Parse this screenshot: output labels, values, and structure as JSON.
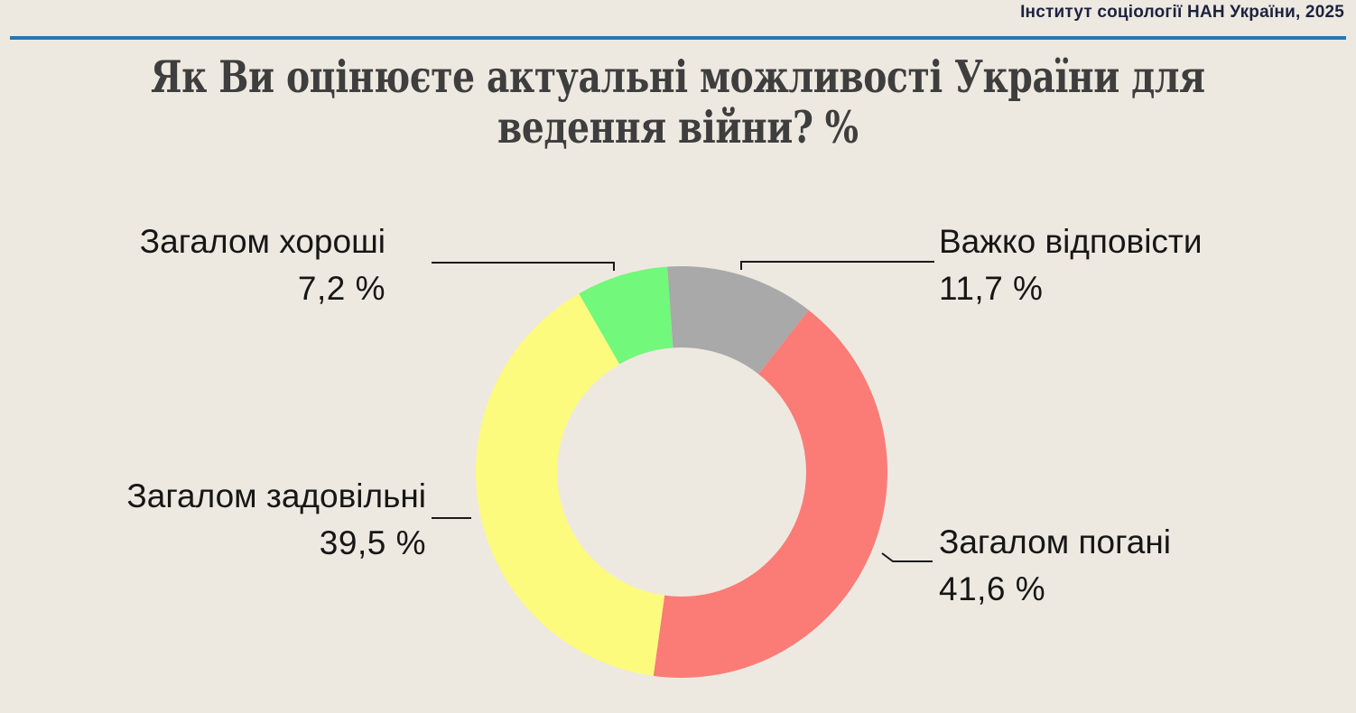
{
  "header": {
    "source": "Інститут соціології НАН України, 2025"
  },
  "title": {
    "line1": "Як Ви оцінюєте актуальні можливості України для",
    "line2": "ведення війни? %"
  },
  "colors": {
    "background": "#EDE9E0",
    "rule_blue": "#2878B2",
    "title_text": "#3E3E3E",
    "leader_line": "#1A1A1A"
  },
  "chart_data": {
    "type": "pie",
    "subtype": "donut",
    "title": "Як Ви оцінюєте актуальні можливості України для ведення війни? %",
    "categories": [
      "Важко відповісти",
      "Загалом погані",
      "Загалом задовільні",
      "Загалом хороші"
    ],
    "values": [
      11.7,
      41.6,
      39.5,
      7.2
    ],
    "value_labels": [
      "11,7 %",
      "41,6 %",
      "39,5 %",
      "7,2 %"
    ],
    "colors": [
      "#A9A9A9",
      "#FB7C77",
      "#FDFB7D",
      "#72F87B"
    ],
    "start_angle_deg": -4,
    "direction": "clockwise",
    "inner_radius_ratio": 0.605,
    "legend_position": "callout-labels",
    "units": "%"
  },
  "callouts": {
    "good": {
      "label": "Загалом хороші",
      "value": "7,2 %"
    },
    "hard": {
      "label": "Важко відповісти",
      "value": "11,7 %"
    },
    "satisfactory": {
      "label": "Загалом задовільні",
      "value": "39,5 %"
    },
    "bad": {
      "label": "Загалом погані",
      "value": "41,6 %"
    }
  }
}
